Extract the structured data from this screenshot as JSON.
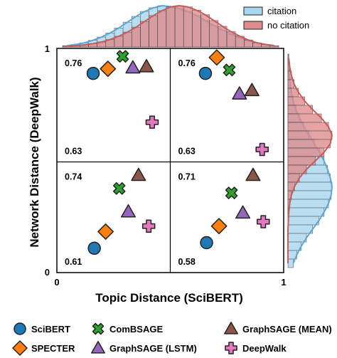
{
  "chart_data": {
    "type": "scatter",
    "xlabel": "Topic Distance (SciBERT)",
    "ylabel": "Network Distance (DeepWalk)",
    "xlim": [
      0,
      1
    ],
    "ylim": [
      0,
      1
    ],
    "xticks": [
      "0",
      "1"
    ],
    "yticks": [
      "0",
      "1"
    ],
    "series": [
      {
        "name": "SciBERT",
        "marker": "circle",
        "color": "#1f77b4"
      },
      {
        "name": "SPECTER",
        "marker": "diamond",
        "color": "#ff7f0e"
      },
      {
        "name": "ComBSAGE",
        "marker": "x",
        "color": "#2ca02c"
      },
      {
        "name": "GraphSAGE (LSTM)",
        "marker": "triangle",
        "color": "#9467bd"
      },
      {
        "name": "GraphSAGE (MEAN)",
        "marker": "triangle",
        "color": "#8c564b"
      },
      {
        "name": "DeepWalk",
        "marker": "plus",
        "color": "#e377c2"
      }
    ],
    "panels": [
      {
        "id": "top-left",
        "ytop": "0.76",
        "ybottom": "0.63",
        "points": {
          "SciBERT": [
            0.32,
            0.78
          ],
          "SPECTER": [
            0.45,
            0.82
          ],
          "ComBSAGE": [
            0.58,
            0.93
          ],
          "GraphSAGE (LSTM)": [
            0.67,
            0.83
          ],
          "GraphSAGE (MEAN)": [
            0.79,
            0.84
          ],
          "DeepWalk": [
            0.84,
            0.35
          ]
        }
      },
      {
        "id": "top-right",
        "ytop": "0.76",
        "ybottom": "0.63",
        "points": {
          "SciBERT": [
            0.31,
            0.78
          ],
          "SPECTER": [
            0.41,
            0.92
          ],
          "ComBSAGE": [
            0.52,
            0.81
          ],
          "GraphSAGE (LSTM)": [
            0.61,
            0.6
          ],
          "GraphSAGE (MEAN)": [
            0.72,
            0.63
          ],
          "DeepWalk": [
            0.81,
            0.11
          ]
        }
      },
      {
        "id": "bottom-left",
        "ytop": "0.74",
        "ybottom": "0.61",
        "points": {
          "SciBERT": [
            0.33,
            0.22
          ],
          "SPECTER": [
            0.43,
            0.37
          ],
          "ComBSAGE": [
            0.55,
            0.76
          ],
          "GraphSAGE (LSTM)": [
            0.63,
            0.55
          ],
          "GraphSAGE (MEAN)": [
            0.72,
            0.88
          ],
          "DeepWalk": [
            0.81,
            0.42
          ]
        }
      },
      {
        "id": "bottom-right",
        "ytop": "0.71",
        "ybottom": "0.58",
        "points": {
          "SciBERT": [
            0.32,
            0.27
          ],
          "SPECTER": [
            0.43,
            0.42
          ],
          "ComBSAGE": [
            0.54,
            0.72
          ],
          "GraphSAGE (LSTM)": [
            0.64,
            0.54
          ],
          "GraphSAGE (MEAN)": [
            0.73,
            0.88
          ],
          "DeepWalk": [
            0.82,
            0.46
          ]
        }
      }
    ],
    "marginal": {
      "legend": [
        "citation",
        "no citation"
      ],
      "colors": {
        "citation": "#a6d6ee",
        "no citation": "#e08a8a"
      },
      "top": {
        "citation": [
          0.03,
          0.06,
          0.1,
          0.16,
          0.24,
          0.34,
          0.46,
          0.6,
          0.74,
          0.86,
          0.95,
          1.0,
          0.98,
          0.93,
          0.86,
          0.76,
          0.64,
          0.52,
          0.41,
          0.31,
          0.22,
          0.15,
          0.1,
          0.06,
          0.03
        ],
        "no citation": [
          0.02,
          0.03,
          0.05,
          0.08,
          0.12,
          0.18,
          0.26,
          0.36,
          0.48,
          0.62,
          0.76,
          0.88,
          0.97,
          1.0,
          0.97,
          0.89,
          0.78,
          0.64,
          0.5,
          0.37,
          0.26,
          0.17,
          0.1,
          0.06,
          0.03
        ]
      },
      "right": {
        "citation": [
          0.01,
          0.02,
          0.03,
          0.05,
          0.08,
          0.12,
          0.18,
          0.26,
          0.36,
          0.48,
          0.6,
          0.72,
          0.82,
          0.9,
          0.96,
          1.0,
          0.98,
          0.92,
          0.82,
          0.7,
          0.56,
          0.42,
          0.3,
          0.2,
          0.12
        ],
        "no citation": [
          0.02,
          0.04,
          0.08,
          0.14,
          0.24,
          0.38,
          0.56,
          0.76,
          0.92,
          1.0,
          0.96,
          0.82,
          0.62,
          0.42,
          0.26,
          0.15,
          0.08,
          0.04,
          0.02,
          0.01,
          0.0,
          0.0,
          0.0,
          0.0,
          0.0
        ]
      }
    }
  }
}
